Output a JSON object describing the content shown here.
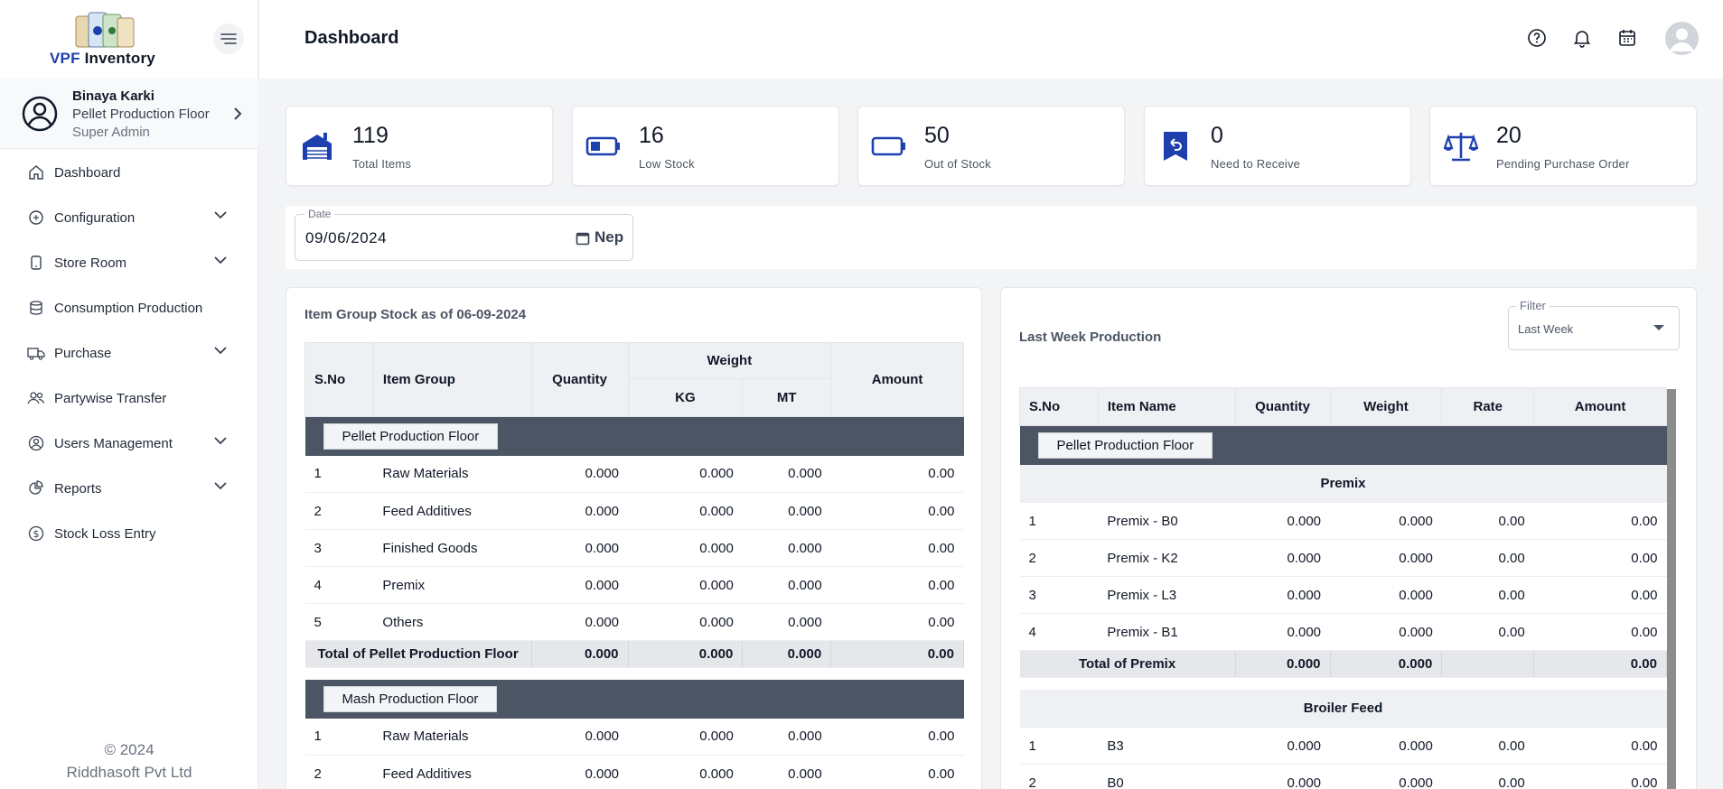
{
  "brand": {
    "prefix": "VPF",
    "suffix": "Inventory"
  },
  "profile": {
    "name": "Binaya Karki",
    "floor": "Pellet Production Floor",
    "role": "Super Admin"
  },
  "nav": [
    {
      "label": "Dashboard",
      "icon": "home-icon",
      "expandable": false
    },
    {
      "label": "Configuration",
      "icon": "config-icon",
      "expandable": true
    },
    {
      "label": "Store Room",
      "icon": "tablet-icon",
      "expandable": true
    },
    {
      "label": "Consumption Production",
      "icon": "database-icon",
      "expandable": false
    },
    {
      "label": "Purchase",
      "icon": "truck-icon",
      "expandable": true
    },
    {
      "label": "Partywise Transfer",
      "icon": "users-icon",
      "expandable": false
    },
    {
      "label": "Users Management",
      "icon": "user-circle-icon",
      "expandable": true
    },
    {
      "label": "Reports",
      "icon": "pie-chart-icon",
      "expandable": true
    },
    {
      "label": "Stock Loss Entry",
      "icon": "dollar-icon",
      "expandable": false
    }
  ],
  "footer": {
    "copyright": "© 2024",
    "company": "Riddhasoft Pvt Ltd"
  },
  "header": {
    "title": "Dashboard"
  },
  "cards": [
    {
      "value": "119",
      "label": "Total Items",
      "icon": "warehouse-icon"
    },
    {
      "value": "16",
      "label": "Low Stock",
      "icon": "battery-low-icon"
    },
    {
      "value": "50",
      "label": "Out of Stock",
      "icon": "battery-empty-icon"
    },
    {
      "value": "0",
      "label": "Need to Receive",
      "icon": "receive-icon"
    },
    {
      "value": "20",
      "label": "Pending Purchase Order",
      "icon": "scale-icon"
    }
  ],
  "date": {
    "label": "Date",
    "value": "09/06/2024",
    "calendar_type": "Nep"
  },
  "left_panel": {
    "title": "Item Group Stock as of 06-09-2024",
    "headers": {
      "sno": "S.No",
      "group": "Item Group",
      "quantity": "Quantity",
      "weight": "Weight",
      "kg": "KG",
      "mt": "MT",
      "amount": "Amount"
    },
    "sections": [
      {
        "name": "Pellet Production Floor",
        "rows": [
          {
            "sno": "1",
            "group": "Raw Materials",
            "quantity": "0.000",
            "kg": "0.000",
            "mt": "0.000",
            "amount": "0.00"
          },
          {
            "sno": "2",
            "group": "Feed Additives",
            "quantity": "0.000",
            "kg": "0.000",
            "mt": "0.000",
            "amount": "0.00"
          },
          {
            "sno": "3",
            "group": "Finished Goods",
            "quantity": "0.000",
            "kg": "0.000",
            "mt": "0.000",
            "amount": "0.00"
          },
          {
            "sno": "4",
            "group": "Premix",
            "quantity": "0.000",
            "kg": "0.000",
            "mt": "0.000",
            "amount": "0.00"
          },
          {
            "sno": "5",
            "group": "Others",
            "quantity": "0.000",
            "kg": "0.000",
            "mt": "0.000",
            "amount": "0.00"
          }
        ],
        "total": {
          "label": "Total of Pellet Production Floor",
          "quantity": "0.000",
          "kg": "0.000",
          "mt": "0.000",
          "amount": "0.00"
        }
      },
      {
        "name": "Mash Production Floor",
        "rows": [
          {
            "sno": "1",
            "group": "Raw Materials",
            "quantity": "0.000",
            "kg": "0.000",
            "mt": "0.000",
            "amount": "0.00"
          },
          {
            "sno": "2",
            "group": "Feed Additives",
            "quantity": "0.000",
            "kg": "0.000",
            "mt": "0.000",
            "amount": "0.00"
          }
        ]
      }
    ]
  },
  "right_panel": {
    "title": "Last Week Production",
    "filter": {
      "label": "Filter",
      "value": "Last Week"
    },
    "headers": {
      "sno": "S.No",
      "item": "Item Name",
      "quantity": "Quantity",
      "weight": "Weight",
      "rate": "Rate",
      "amount": "Amount"
    },
    "floor": "Pellet Production Floor",
    "groups": [
      {
        "name": "Premix",
        "rows": [
          {
            "sno": "1",
            "item": "Premix - B0",
            "quantity": "0.000",
            "weight": "0.000",
            "rate": "0.00",
            "amount": "0.00"
          },
          {
            "sno": "2",
            "item": "Premix - K2",
            "quantity": "0.000",
            "weight": "0.000",
            "rate": "0.00",
            "amount": "0.00"
          },
          {
            "sno": "3",
            "item": "Premix - L3",
            "quantity": "0.000",
            "weight": "0.000",
            "rate": "0.00",
            "amount": "0.00"
          },
          {
            "sno": "4",
            "item": "Premix - B1",
            "quantity": "0.000",
            "weight": "0.000",
            "rate": "0.00",
            "amount": "0.00"
          }
        ],
        "total": {
          "label": "Total of Premix",
          "quantity": "0.000",
          "weight": "0.000",
          "rate": "",
          "amount": "0.00"
        }
      },
      {
        "name": "Broiler Feed",
        "rows": [
          {
            "sno": "1",
            "item": "B3",
            "quantity": "0.000",
            "weight": "0.000",
            "rate": "0.00",
            "amount": "0.00"
          },
          {
            "sno": "2",
            "item": "B0",
            "quantity": "0.000",
            "weight": "0.000",
            "rate": "0.00",
            "amount": "0.00"
          }
        ]
      }
    ]
  },
  "colors": {
    "accent": "#1e40af",
    "link": "#3b5bdb",
    "section_bar": "#4b5563"
  }
}
